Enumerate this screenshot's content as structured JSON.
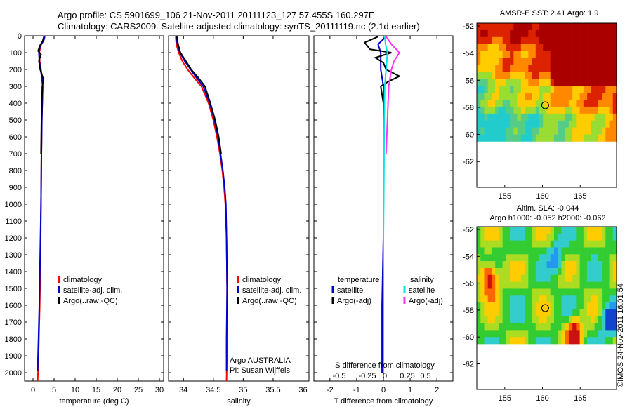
{
  "header": {
    "line1": "Argo profile: CS 5901699_106 21-Nov-2011 20111123_127 57.455S 160.297E",
    "line2": "Climatology: CARS2009. Satellite-adjusted climatology: synTS_20111119.nc (2.1d earlier)"
  },
  "colors": {
    "climatology": "#ff0000",
    "satellite": "#0000cc",
    "argo": "#000000",
    "sal_satellite": "#00e5e5",
    "sal_argo": "#ff33ff"
  },
  "chart_data": [
    {
      "type": "line",
      "id": "temperature",
      "xlabel": "temperature (deg C)",
      "ylabel": "",
      "xlim": [
        -2,
        31
      ],
      "ylim": [
        2050,
        0
      ],
      "xticks": [
        0,
        5,
        10,
        15,
        20,
        25,
        30
      ],
      "yticks": [
        0,
        100,
        200,
        300,
        400,
        500,
        600,
        700,
        800,
        900,
        1000,
        1100,
        1200,
        1300,
        1400,
        1500,
        1600,
        1700,
        1800,
        1900,
        2000
      ],
      "legend": [
        "climatology",
        "satellite-adj. clim.",
        "Argo(..raw -QC)"
      ],
      "series": [
        {
          "name": "climatology",
          "color": "#ff0000",
          "points": [
            [
              2.7,
              5
            ],
            [
              2.4,
              30
            ],
            [
              1.8,
              60
            ],
            [
              1.5,
              100
            ],
            [
              1.6,
              150
            ],
            [
              1.9,
              200
            ],
            [
              2.2,
              250
            ],
            [
              2.3,
              300
            ],
            [
              2.2,
              400
            ],
            [
              2.1,
              500
            ],
            [
              2.0,
              700
            ],
            [
              1.9,
              1000
            ],
            [
              1.8,
              1300
            ],
            [
              1.6,
              1600
            ],
            [
              1.4,
              1800
            ],
            [
              1.2,
              2000
            ],
            [
              1.1,
              2050
            ]
          ]
        },
        {
          "name": "satellite-adj. clim.",
          "color": "#0000cc",
          "points": [
            [
              2.8,
              5
            ],
            [
              2.5,
              30
            ],
            [
              1.7,
              60
            ],
            [
              1.4,
              100
            ],
            [
              1.5,
              150
            ],
            [
              1.8,
              200
            ],
            [
              2.1,
              250
            ],
            [
              2.3,
              300
            ],
            [
              2.2,
              400
            ],
            [
              2.1,
              500
            ],
            [
              2.0,
              700
            ],
            [
              1.9,
              1000
            ],
            [
              1.7,
              1300
            ],
            [
              1.5,
              1600
            ],
            [
              1.3,
              1800
            ],
            [
              1.1,
              1990
            ]
          ]
        },
        {
          "name": "Argo(..raw -QC)",
          "color": "#000000",
          "points": [
            [
              2.6,
              5
            ],
            [
              2.3,
              30
            ],
            [
              1.6,
              60
            ],
            [
              1.2,
              90
            ],
            [
              1.9,
              110
            ],
            [
              1.4,
              150
            ],
            [
              1.7,
              200
            ],
            [
              2.5,
              260
            ],
            [
              2.2,
              300
            ],
            [
              2.1,
              400
            ],
            [
              2.0,
              500
            ],
            [
              1.9,
              700
            ]
          ]
        }
      ]
    },
    {
      "type": "line",
      "id": "salinity",
      "xlabel": "salinity",
      "xlim": [
        33.75,
        36.1
      ],
      "ylim": [
        2050,
        0
      ],
      "xticks": [
        34,
        34.5,
        35,
        35.5,
        36
      ],
      "legend": [
        "climatology",
        "satellite-adj. clim.",
        "Argo(..raw -QC)"
      ],
      "annotation": [
        "Argo AUSTRALIA",
        "PI: Susan Wijffels"
      ],
      "series": [
        {
          "name": "climatology",
          "color": "#ff0000",
          "points": [
            [
              33.87,
              5
            ],
            [
              33.88,
              50
            ],
            [
              33.92,
              100
            ],
            [
              33.98,
              150
            ],
            [
              34.07,
              200
            ],
            [
              34.18,
              250
            ],
            [
              34.3,
              300
            ],
            [
              34.42,
              400
            ],
            [
              34.5,
              500
            ],
            [
              34.56,
              600
            ],
            [
              34.61,
              700
            ],
            [
              34.65,
              800
            ],
            [
              34.68,
              900
            ],
            [
              34.7,
              1000
            ],
            [
              34.72,
              1200
            ],
            [
              34.73,
              1500
            ],
            [
              34.73,
              1800
            ],
            [
              34.72,
              2050
            ]
          ]
        },
        {
          "name": "satellite-adj. clim.",
          "color": "#0000cc",
          "points": [
            [
              33.88,
              5
            ],
            [
              33.9,
              50
            ],
            [
              33.94,
              100
            ],
            [
              34.02,
              150
            ],
            [
              34.12,
              200
            ],
            [
              34.22,
              250
            ],
            [
              34.33,
              300
            ],
            [
              34.44,
              400
            ],
            [
              34.52,
              500
            ],
            [
              34.58,
              600
            ],
            [
              34.62,
              700
            ],
            [
              34.66,
              800
            ],
            [
              34.69,
              900
            ],
            [
              34.71,
              1000
            ],
            [
              34.72,
              1200
            ],
            [
              34.73,
              1500
            ],
            [
              34.72,
              1800
            ],
            [
              34.72,
              1990
            ]
          ]
        },
        {
          "name": "Argo(..raw -QC)",
          "color": "#000000",
          "points": [
            [
              33.89,
              5
            ],
            [
              33.91,
              50
            ],
            [
              33.95,
              100
            ],
            [
              34.04,
              150
            ],
            [
              34.13,
              200
            ],
            [
              34.25,
              250
            ],
            [
              34.36,
              300
            ],
            [
              34.45,
              400
            ],
            [
              34.53,
              500
            ],
            [
              34.59,
              600
            ],
            [
              34.63,
              700
            ]
          ]
        }
      ]
    },
    {
      "type": "line",
      "id": "difference",
      "xlabel": "T difference from climatology",
      "xlabel_top": "S difference from climatology",
      "xlim": [
        -2.6,
        2.6
      ],
      "ylim": [
        2050,
        0
      ],
      "xticks": [
        -2,
        -1,
        0,
        1,
        2
      ],
      "s_xticks": [
        "-0.5",
        "-0.25",
        "0",
        "0.25",
        "0.5"
      ],
      "legend_left_title": "temperature",
      "legend_right_title": "salinity",
      "legend_left": [
        "satellite",
        "Argo(-adj)"
      ],
      "legend_right": [
        "satellite",
        "Argo(-adj)"
      ],
      "series": [
        {
          "name": "T satellite",
          "color": "#0000cc",
          "points": [
            [
              0.1,
              5
            ],
            [
              -0.2,
              50
            ],
            [
              -0.1,
              100
            ],
            [
              -0.1,
              200
            ],
            [
              0.0,
              300
            ],
            [
              0.0,
              500
            ],
            [
              0.0,
              800
            ],
            [
              0.0,
              1200
            ],
            [
              -0.05,
              1600
            ],
            [
              -0.05,
              2000
            ]
          ]
        },
        {
          "name": "T Argo(-adj)",
          "color": "#000000",
          "points": [
            [
              -0.2,
              5
            ],
            [
              -0.7,
              40
            ],
            [
              -0.5,
              80
            ],
            [
              0.3,
              100
            ],
            [
              -0.3,
              130
            ],
            [
              0.0,
              160
            ],
            [
              0.1,
              200
            ],
            [
              0.6,
              240
            ],
            [
              0.2,
              270
            ],
            [
              -0.1,
              300
            ],
            [
              0.0,
              400
            ],
            [
              0.0,
              700
            ]
          ]
        },
        {
          "name": "S satellite",
          "color": "#00e5e5",
          "points": [
            [
              0.05,
              5
            ],
            [
              0.08,
              50
            ],
            [
              0.15,
              100
            ],
            [
              0.1,
              200
            ],
            [
              0.05,
              300
            ],
            [
              0.03,
              500
            ],
            [
              0.02,
              800
            ],
            [
              0.0,
              1200
            ],
            [
              0.0,
              1600
            ],
            [
              0.0,
              2000
            ]
          ]
        },
        {
          "name": "S Argo(-adj)",
          "color": "#ff33ff",
          "points": [
            [
              0.1,
              5
            ],
            [
              0.3,
              50
            ],
            [
              0.6,
              100
            ],
            [
              0.4,
              150
            ],
            [
              0.3,
              200
            ],
            [
              0.2,
              300
            ],
            [
              0.15,
              500
            ],
            [
              0.1,
              700
            ]
          ]
        }
      ]
    },
    {
      "type": "heatmap",
      "id": "sst-map",
      "title": "AMSR-E SST: 2.41 Argo: 1.9",
      "xticks": [
        "155",
        "160",
        "165"
      ],
      "yticks": [
        "-52",
        "-54",
        "-56",
        "-58",
        "-60",
        "-62"
      ],
      "xlim": [
        151,
        170
      ],
      "ylim": [
        -63.5,
        -51.5
      ],
      "argo_position": [
        160.3,
        -57.5
      ]
    },
    {
      "type": "heatmap",
      "id": "sla-map",
      "title": "Altim. SLA: -0.044",
      "subtitle": "Argo h1000: -0.052 h2000: -0.062",
      "xticks": [
        "155",
        "160",
        "165"
      ],
      "yticks": [
        "-52",
        "-54",
        "-56",
        "-58",
        "-60",
        "-62"
      ],
      "xlim": [
        151,
        170
      ],
      "ylim": [
        -63.5,
        -51.5
      ],
      "argo_position": [
        160.3,
        -57.5
      ]
    }
  ],
  "credit": "©IMOS 24-Nov-2011 16:01:54"
}
